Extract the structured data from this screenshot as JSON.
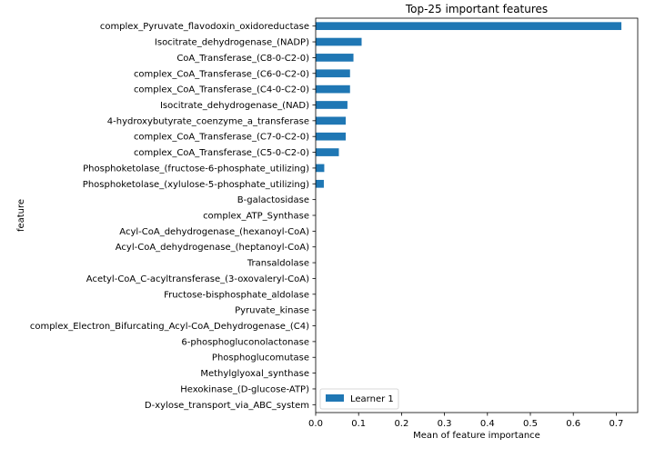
{
  "chart_data": {
    "type": "bar",
    "orientation": "horizontal",
    "title": "Top-25 important features",
    "xlabel": "Mean of feature importance",
    "ylabel": "feature",
    "xlim": [
      0,
      0.75
    ],
    "xticks": [
      0.0,
      0.1,
      0.2,
      0.3,
      0.4,
      0.5,
      0.6,
      0.7
    ],
    "xtick_labels": [
      "0.0",
      "0.1",
      "0.2",
      "0.3",
      "0.4",
      "0.5",
      "0.6",
      "0.7"
    ],
    "grid": false,
    "legend_position": "lower-left",
    "bar_color": "#1f77b4",
    "categories": [
      "complex_Pyruvate_flavodoxin_oxidoreductase",
      "Isocitrate_dehydrogenase_(NADP)",
      "CoA_Transferase_(C8-0-C2-0)",
      "complex_CoA_Transferase_(C6-0-C2-0)",
      "complex_CoA_Transferase_(C4-0-C2-0)",
      "Isocitrate_dehydrogenase_(NAD)",
      "4-hydroxybutyrate_coenzyme_a_transferase",
      "complex_CoA_Transferase_(C7-0-C2-0)",
      "complex_CoA_Transferase_(C5-0-C2-0)",
      "Phosphoketolase_(fructose-6-phosphate_utilizing)",
      "Phosphoketolase_(xylulose-5-phosphate_utilizing)",
      "B-galactosidase",
      "complex_ATP_Synthase",
      "Acyl-CoA_dehydrogenase_(hexanoyl-CoA)",
      "Acyl-CoA_dehydrogenase_(heptanoyl-CoA)",
      "Transaldolase",
      "Acetyl-CoA_C-acyltransferase_(3-oxovaleryl-CoA)",
      "Fructose-bisphosphate_aldolase",
      "Pyruvate_kinase",
      "complex_Electron_Bifurcating_Acyl-CoA_Dehydrogenase_(C4)",
      "6-phosphogluconolactonase",
      "Phosphoglucomutase",
      "Methylglyoxal_synthase",
      "Hexokinase_(D-glucose-ATP)",
      "D-xylose_transport_via_ABC_system"
    ],
    "series": [
      {
        "name": "Learner 1",
        "values": [
          0.712,
          0.107,
          0.088,
          0.08,
          0.08,
          0.074,
          0.07,
          0.07,
          0.054,
          0.02,
          0.019,
          0.0,
          0.0,
          0.0,
          0.0,
          0.0,
          0.0,
          0.0,
          0.0,
          0.0,
          0.0,
          0.0,
          0.0,
          0.0,
          0.0
        ]
      }
    ]
  }
}
